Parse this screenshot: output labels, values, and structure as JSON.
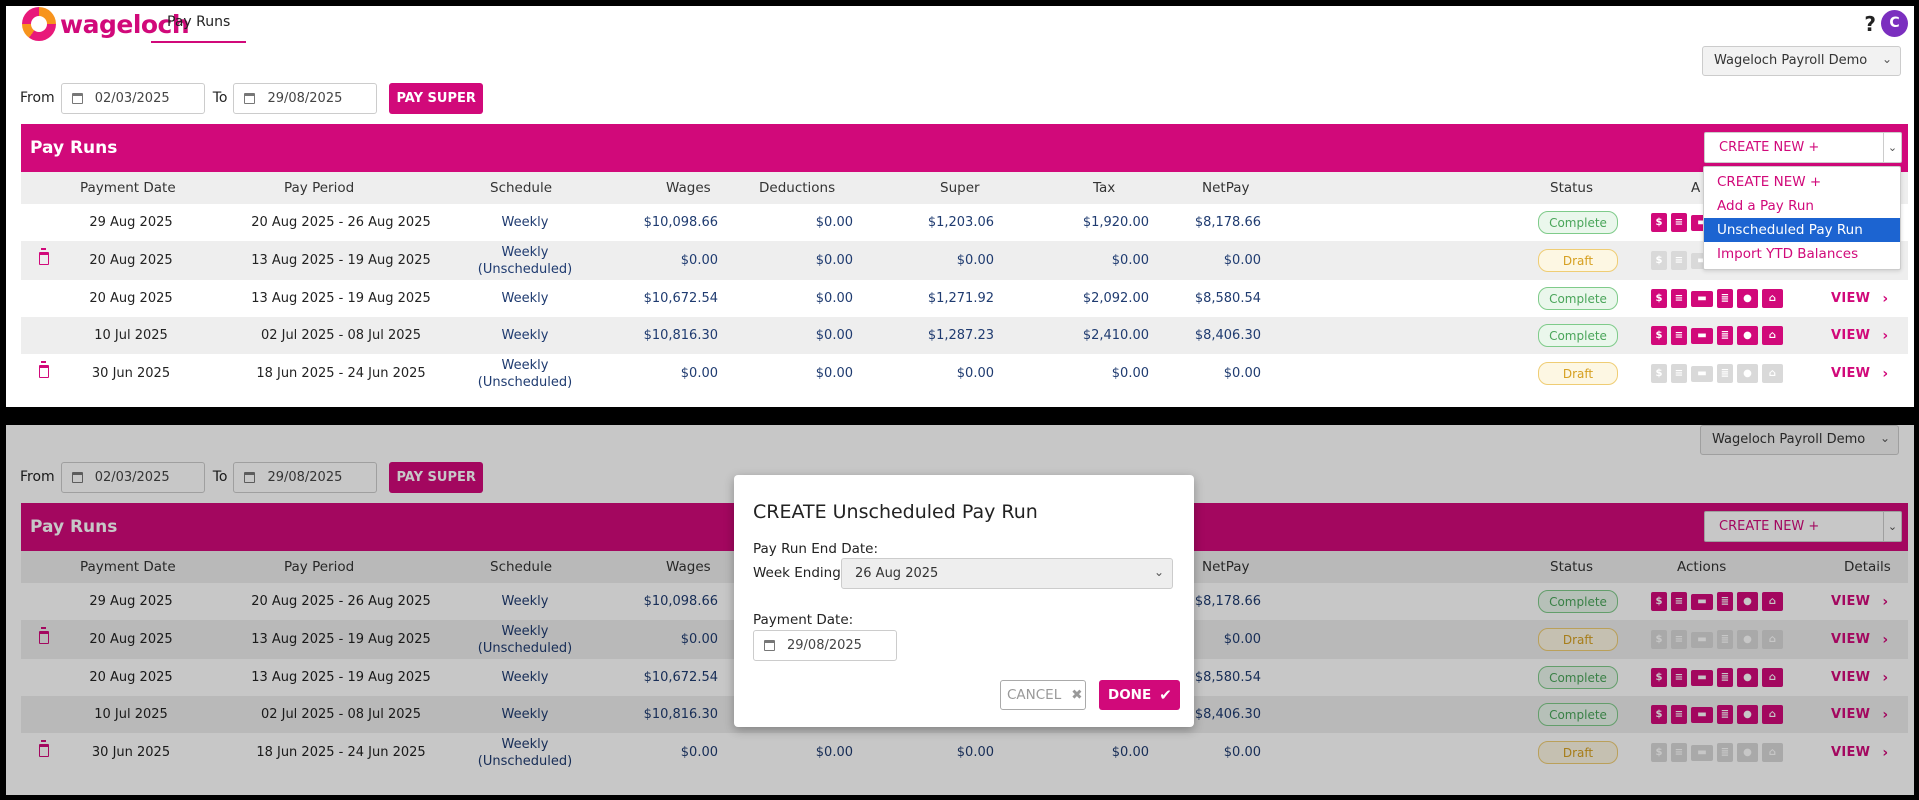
{
  "app": {
    "logo_text": "wageloch",
    "nav_tab": "Pay Runs",
    "help": "?",
    "avatar": "C",
    "company": "Wageloch Payroll Demo"
  },
  "filters": {
    "from_label": "From",
    "from": "02/03/2025",
    "to_label": "To",
    "to": "29/08/2025",
    "pay_super": "PAY SUPER"
  },
  "payruns": {
    "title": "Pay Runs",
    "create_value": "CREATE NEW +"
  },
  "columns": {
    "payment_date": "Payment Date",
    "pay_period": "Pay Period",
    "schedule": "Schedule",
    "wages": "Wages",
    "deductions": "Deductions",
    "super": "Super",
    "tax": "Tax",
    "netpay": "NetPay",
    "status": "Status",
    "actions": "Actions",
    "actions_clipped": "A",
    "details": "Details"
  },
  "rows": [
    {
      "payment_date": "29 Aug 2025",
      "pay_period": "20 Aug 2025 - 26 Aug 2025",
      "schedule": "Weekly",
      "schedule_sub": "",
      "wages": "$10,098.66",
      "deductions": "$0.00",
      "super": "$1,203.06",
      "tax": "$1,920.00",
      "netpay": "$8,178.66",
      "status": "Complete",
      "view": "VIEW"
    },
    {
      "payment_date": "20 Aug 2025",
      "pay_period": "13 Aug 2025 - 19 Aug 2025",
      "schedule": "Weekly",
      "schedule_sub": "(Unscheduled)",
      "wages": "$0.00",
      "deductions": "$0.00",
      "super": "$0.00",
      "tax": "$0.00",
      "netpay": "$0.00",
      "status": "Draft",
      "view": "VIEW"
    },
    {
      "payment_date": "20 Aug 2025",
      "pay_period": "13 Aug 2025 - 19 Aug 2025",
      "schedule": "Weekly",
      "schedule_sub": "",
      "wages": "$10,672.54",
      "deductions": "$0.00",
      "super": "$1,271.92",
      "tax": "$2,092.00",
      "netpay": "$8,580.54",
      "status": "Complete",
      "view": "VIEW"
    },
    {
      "payment_date": "10 Jul 2025",
      "pay_period": "02 Jul 2025 - 08 Jul 2025",
      "schedule": "Weekly",
      "schedule_sub": "",
      "wages": "$10,816.30",
      "deductions": "$0.00",
      "super": "$1,287.23",
      "tax": "$2,410.00",
      "netpay": "$8,406.30",
      "status": "Complete",
      "view": "VIEW"
    },
    {
      "payment_date": "30 Jun 2025",
      "pay_period": "18 Jun 2025 - 24 Jun 2025",
      "schedule": "Weekly",
      "schedule_sub": "(Unscheduled)",
      "wages": "$0.00",
      "deductions": "$0.00",
      "super": "$0.00",
      "tax": "$0.00",
      "netpay": "$0.00",
      "status": "Draft",
      "view": "VIEW"
    }
  ],
  "dropdown": {
    "items": [
      "CREATE NEW +",
      "Add a Pay Run",
      "Unscheduled Pay Run",
      "Import YTD Balances"
    ],
    "selected": "Unscheduled Pay Run"
  },
  "modal": {
    "title": "CREATE Unscheduled Pay Run",
    "end_date_label": "Pay Run End Date:",
    "week_ending_label": "Week Ending",
    "week_ending_value": "26 Aug 2025",
    "payment_date_label": "Payment Date:",
    "payment_date_value": "29/08/2025",
    "cancel": "CANCEL",
    "done": "DONE"
  },
  "colors": {
    "brand": "#d1097a",
    "complete": "#4aa55a",
    "draft": "#d6a021",
    "selected": "#1c64d1"
  },
  "icons": [
    "help-icon",
    "calendar-icon",
    "chevron-down-icon",
    "trash-icon",
    "payslip-icon",
    "document-icon",
    "card-icon",
    "report-icon",
    "piggy-bank-icon",
    "bank-icon",
    "chevron-right-icon",
    "close-icon",
    "check-icon"
  ]
}
